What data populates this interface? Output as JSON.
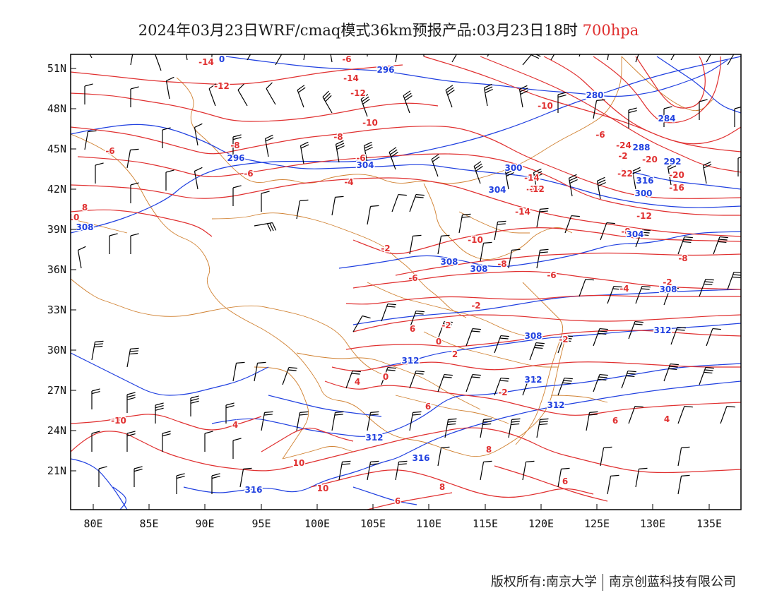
{
  "title": {
    "text": "2024年03月23日WRF/cmaq模式36km预报产品:03月23日18时",
    "level": "700hpa"
  },
  "colors": {
    "temperature_contour": "#e03030",
    "height_contour": "#2040e0",
    "border": "#d08030",
    "wind_barb": "#000000",
    "level_text": "#e03030"
  },
  "axes": {
    "lon_ticks": [
      "80E",
      "85E",
      "90E",
      "95E",
      "100E",
      "105E",
      "110E",
      "115E",
      "120E",
      "125E",
      "130E",
      "135E"
    ],
    "lat_ticks": [
      "51N",
      "48N",
      "45N",
      "42N",
      "39N",
      "36N",
      "33N",
      "30N",
      "27N",
      "24N",
      "21N"
    ]
  },
  "copyright": {
    "left": "版权所有:南京大学",
    "right": "南京创蓝科技有限公司"
  },
  "contour_labels": {
    "temperature": [
      "-14",
      "-6",
      "-14",
      "-12",
      "-12",
      "-10",
      "-8",
      "-8",
      "-6",
      "-6",
      "-6",
      "-4",
      "-2",
      "-10",
      "-6",
      "-2",
      "-24",
      "-20",
      "-22",
      "-20",
      "-16",
      "-14",
      "-12",
      "-14",
      "-12",
      "-10",
      "-8",
      "-8",
      "-6",
      "-8",
      "-6",
      "-4",
      "-2",
      "-2",
      "-2",
      "0",
      "2",
      "-2",
      "0",
      "-2",
      "4",
      "6",
      "6",
      "4",
      "8",
      "8",
      "6",
      "6",
      "10",
      "10",
      "10",
      "8",
      "6",
      "4",
      "6",
      "-10",
      "-12"
    ],
    "height": [
      "0",
      "296",
      "280",
      "284",
      "288",
      "292",
      "296",
      "300",
      "304",
      "304",
      "300",
      "308",
      "304",
      "308",
      "308",
      "308",
      "308",
      "312",
      "312",
      "312",
      "312",
      "316",
      "316",
      "312",
      "316"
    ]
  },
  "icons": {
    "wind_barb": "wind-barb-icon"
  }
}
